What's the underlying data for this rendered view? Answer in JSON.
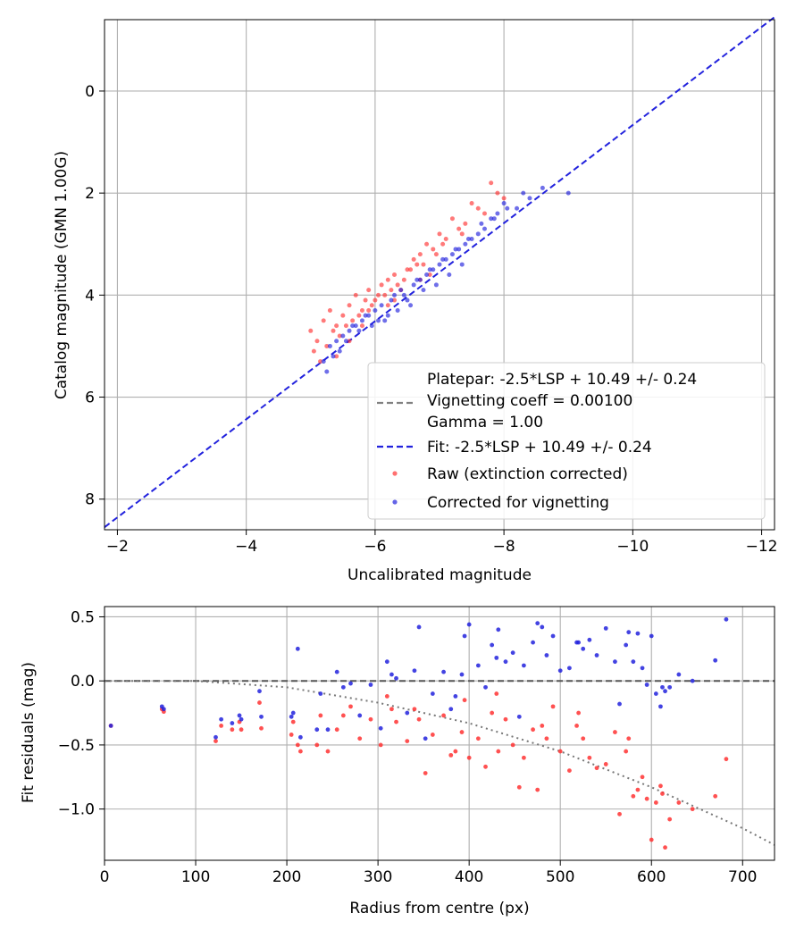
{
  "chart_data": [
    {
      "type": "scatter",
      "xlabel": "Uncalibrated magnitude",
      "ylabel": "Catalog magnitude (GMN 1.00G)",
      "xlim": [
        -1.8,
        -12.2
      ],
      "ylim": [
        8.6,
        -1.4
      ],
      "xticks": [
        -2,
        -4,
        -6,
        -8,
        -10,
        -12
      ],
      "yticks": [
        0,
        2,
        4,
        6,
        8
      ],
      "grid": true,
      "legend_position": "lower-right",
      "legend": {
        "platepar": "Platepar: -2.5*LSP + 10.49 +/- 0.24",
        "vignetting": "Vignetting coeff = 0.00100",
        "gamma": "Gamma = 1.00",
        "fit": "Fit: -2.5*LSP + 10.49 +/- 0.24",
        "raw": "Raw (extinction corrected)",
        "corrected": "Corrected for vignetting"
      },
      "lines": [
        {
          "name": "Fit: -2.5*LSP + 10.49 +/- 0.24",
          "color": "#2222dd",
          "style": "dashed",
          "x": [
            -1.8,
            -12.2
          ],
          "y": [
            8.55,
            -1.45
          ]
        }
      ],
      "series": [
        {
          "name": "Raw (extinction corrected)",
          "color": "#ff3333",
          "x": [
            -5.0,
            -5.1,
            -5.2,
            -5.3,
            -5.4,
            -5.5,
            -5.6,
            -5.7,
            -5.8,
            -5.9,
            -6.0,
            -6.1,
            -6.2,
            -6.3,
            -6.4,
            -6.5,
            -6.6,
            -6.7,
            -6.8,
            -6.9,
            -7.0,
            -7.2,
            -7.4,
            -7.5,
            -7.7,
            -7.8,
            -7.9,
            -8.0,
            -5.25,
            -5.45,
            -5.65,
            -5.85,
            -6.05,
            -6.25,
            -6.45,
            -6.65,
            -6.85,
            -7.1,
            -7.3,
            -7.6,
            -5.15,
            -5.35,
            -5.55,
            -5.75,
            -5.95,
            -6.15,
            -6.35,
            -6.55,
            -6.75,
            -6.95,
            -5.05,
            -5.6,
            -5.9,
            -6.3,
            -6.7,
            -7.05,
            -7.35,
            -5.4,
            -5.8,
            -6.2
          ],
          "y": [
            4.7,
            4.9,
            4.5,
            4.3,
            4.6,
            4.4,
            4.2,
            4.0,
            4.3,
            3.9,
            4.1,
            3.8,
            3.7,
            3.6,
            3.9,
            3.5,
            3.3,
            3.2,
            3.0,
            3.1,
            2.8,
            2.5,
            2.6,
            2.2,
            2.4,
            1.8,
            2.0,
            2.1,
            5.0,
            4.8,
            4.5,
            4.1,
            4.0,
            3.9,
            3.7,
            3.4,
            3.6,
            2.9,
            2.7,
            2.3,
            5.3,
            4.7,
            4.6,
            4.4,
            4.2,
            4.0,
            3.8,
            3.5,
            3.4,
            3.2,
            5.1,
            4.9,
            4.3,
            4.1,
            3.7,
            3.0,
            2.8,
            5.2,
            4.6,
            4.2
          ]
        },
        {
          "name": "Corrected for vignetting",
          "color": "#2222dd",
          "x": [
            -5.2,
            -5.3,
            -5.4,
            -5.5,
            -5.6,
            -5.7,
            -5.8,
            -5.9,
            -6.0,
            -6.1,
            -6.2,
            -6.3,
            -6.4,
            -6.5,
            -6.6,
            -6.7,
            -6.8,
            -6.9,
            -7.0,
            -7.1,
            -7.2,
            -7.3,
            -7.4,
            -7.5,
            -7.6,
            -7.7,
            -7.8,
            -7.9,
            -8.0,
            -8.2,
            -8.4,
            -8.6,
            -9.0,
            -5.35,
            -5.55,
            -5.75,
            -5.95,
            -6.15,
            -6.35,
            -6.55,
            -6.75,
            -6.95,
            -7.15,
            -7.35,
            -5.45,
            -5.65,
            -5.85,
            -6.05,
            -6.25,
            -6.45,
            -6.65,
            -6.85,
            -7.05,
            -7.25,
            -7.45,
            -7.65,
            -7.85,
            -8.05,
            -8.3,
            -5.25
          ],
          "y": [
            5.3,
            5.0,
            4.9,
            4.8,
            4.7,
            4.6,
            4.5,
            4.4,
            4.3,
            4.2,
            4.4,
            4.0,
            3.9,
            4.1,
            3.8,
            3.7,
            3.6,
            3.5,
            3.4,
            3.3,
            3.2,
            3.1,
            3.0,
            2.9,
            2.8,
            2.7,
            2.5,
            2.4,
            2.2,
            2.3,
            2.1,
            1.9,
            2.0,
            5.2,
            4.9,
            4.7,
            4.6,
            4.5,
            4.3,
            4.2,
            3.9,
            3.8,
            3.6,
            3.4,
            5.1,
            4.6,
            4.4,
            4.5,
            4.1,
            4.0,
            3.7,
            3.5,
            3.3,
            3.1,
            2.9,
            2.6,
            2.5,
            2.3,
            2.0,
            5.5
          ]
        }
      ]
    },
    {
      "type": "scatter",
      "xlabel": "Radius from centre (px)",
      "ylabel": "Fit residuals (mag)",
      "xlim": [
        0,
        735
      ],
      "ylim": [
        -1.4,
        0.58
      ],
      "xticks": [
        0,
        100,
        200,
        300,
        400,
        500,
        600,
        700
      ],
      "yticks": [
        0.5,
        0.0,
        -0.5,
        -1.0
      ],
      "ytick_labels": [
        "0.5",
        "0.0",
        "−0.5",
        "−1.0"
      ],
      "grid": true,
      "lines": [
        {
          "name": "zero",
          "color": "#555555",
          "style": "dashed",
          "x": [
            0,
            735
          ],
          "y": [
            0,
            0
          ]
        },
        {
          "name": "vignetting model",
          "color": "#777777",
          "style": "dotted",
          "x": [
            0,
            100,
            200,
            300,
            400,
            500,
            600,
            700,
            735
          ],
          "y": [
            0,
            0.0,
            -0.05,
            -0.17,
            -0.33,
            -0.55,
            -0.83,
            -1.15,
            -1.28
          ]
        }
      ],
      "series": [
        {
          "name": "Raw (extinction corrected)",
          "color": "#ff3333",
          "x": [
            7,
            63,
            65,
            122,
            128,
            140,
            148,
            150,
            170,
            172,
            205,
            207,
            212,
            215,
            233,
            237,
            245,
            255,
            262,
            270,
            280,
            292,
            303,
            315,
            320,
            332,
            340,
            352,
            360,
            372,
            380,
            385,
            392,
            400,
            410,
            418,
            425,
            432,
            440,
            448,
            455,
            460,
            470,
            475,
            485,
            492,
            500,
            510,
            518,
            525,
            532,
            540,
            550,
            560,
            565,
            572,
            580,
            585,
            590,
            595,
            600,
            605,
            610,
            615,
            620,
            630,
            645,
            670,
            682,
            310,
            345,
            395,
            430,
            480,
            520,
            575,
            612
          ],
          "y": [
            -0.35,
            -0.22,
            -0.24,
            -0.47,
            -0.35,
            -0.38,
            -0.32,
            -0.38,
            -0.17,
            -0.37,
            -0.42,
            -0.32,
            -0.5,
            -0.55,
            -0.5,
            -0.27,
            -0.55,
            -0.38,
            -0.27,
            -0.2,
            -0.45,
            -0.3,
            -0.5,
            -0.22,
            -0.32,
            -0.47,
            -0.22,
            -0.72,
            -0.42,
            -0.27,
            -0.58,
            -0.55,
            -0.4,
            -0.6,
            -0.45,
            -0.67,
            -0.25,
            -0.55,
            -0.3,
            -0.5,
            -0.83,
            -0.6,
            -0.38,
            -0.85,
            -0.45,
            -0.2,
            -0.55,
            -0.7,
            -0.35,
            -0.45,
            -0.6,
            -0.68,
            -0.65,
            -0.4,
            -1.04,
            -0.55,
            -0.9,
            -0.85,
            -0.75,
            -0.92,
            -1.24,
            -0.95,
            -0.82,
            -1.3,
            -1.08,
            -0.95,
            -1.0,
            -0.9,
            -0.61,
            -0.12,
            -0.3,
            -0.15,
            -0.1,
            -0.35,
            -0.25,
            -0.45,
            -0.88
          ]
        },
        {
          "name": "Corrected for vignetting",
          "color": "#2222dd",
          "x": [
            7,
            63,
            65,
            122,
            128,
            140,
            148,
            150,
            170,
            172,
            205,
            207,
            212,
            215,
            233,
            237,
            245,
            255,
            262,
            270,
            280,
            292,
            303,
            315,
            320,
            332,
            340,
            352,
            360,
            372,
            380,
            385,
            392,
            400,
            410,
            418,
            425,
            432,
            440,
            448,
            455,
            460,
            470,
            475,
            485,
            492,
            500,
            510,
            518,
            525,
            532,
            540,
            550,
            560,
            565,
            572,
            580,
            585,
            590,
            595,
            600,
            605,
            610,
            615,
            620,
            630,
            645,
            670,
            682,
            310,
            345,
            395,
            430,
            480,
            520,
            575,
            612
          ],
          "y": [
            -0.35,
            -0.2,
            -0.22,
            -0.44,
            -0.3,
            -0.33,
            -0.27,
            -0.3,
            -0.08,
            -0.28,
            -0.28,
            -0.25,
            0.25,
            -0.44,
            -0.38,
            -0.1,
            -0.38,
            0.07,
            -0.05,
            -0.02,
            -0.27,
            -0.03,
            -0.37,
            0.05,
            0.02,
            -0.25,
            0.08,
            -0.45,
            -0.1,
            0.07,
            -0.22,
            -0.12,
            0.05,
            0.44,
            0.12,
            -0.05,
            0.28,
            0.4,
            0.15,
            0.22,
            -0.28,
            0.12,
            0.3,
            0.45,
            0.2,
            0.35,
            0.08,
            0.1,
            0.3,
            0.25,
            0.32,
            0.2,
            0.41,
            0.15,
            -0.18,
            0.28,
            0.15,
            0.37,
            0.1,
            -0.03,
            0.35,
            -0.1,
            -0.2,
            -0.08,
            -0.05,
            0.05,
            0.0,
            0.16,
            0.48,
            0.15,
            0.42,
            0.35,
            0.18,
            0.42,
            0.3,
            0.38,
            -0.05
          ]
        }
      ]
    }
  ]
}
